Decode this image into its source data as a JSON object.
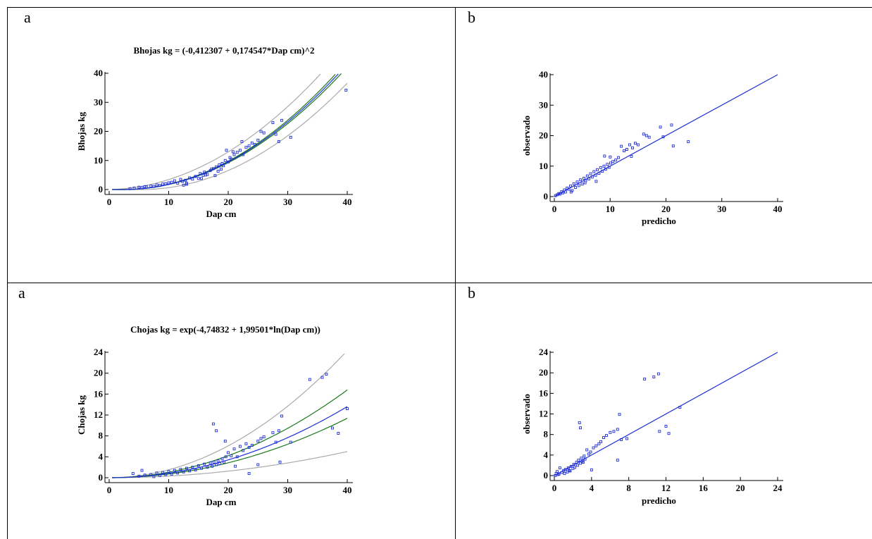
{
  "panel_labels": {
    "top_left": "a",
    "top_right": "b",
    "bottom_left": "a",
    "bottom_right": "b"
  },
  "colors": {
    "points": "#1f2fd6",
    "fit": "#1f2fd6",
    "conf": "#1a7a1a",
    "pred": "#aaaaaa",
    "axis": "#000000"
  },
  "chart_data": [
    {
      "id": "fit_top",
      "type": "scatter",
      "title": "Bhojas kg = (-0,412307 + 0,174547*Dap cm)^2",
      "xlabel": "Dap cm",
      "ylabel": "Bhojas kg",
      "xlim": [
        0,
        40
      ],
      "ylim": [
        0,
        40
      ],
      "xticks": [
        0,
        10,
        20,
        30,
        40
      ],
      "yticks": [
        0,
        10,
        20,
        30,
        40
      ],
      "x": [
        3.5,
        4.2,
        5.0,
        5.5,
        6.0,
        6.3,
        7.0,
        7.5,
        8.0,
        8.5,
        9.0,
        9.5,
        10.0,
        10.5,
        11.0,
        11.5,
        12.0,
        12.3,
        12.8,
        13.0,
        13.5,
        14.0,
        14.5,
        15.0,
        15.3,
        15.8,
        16.0,
        16.5,
        17.0,
        17.2,
        17.5,
        18.0,
        18.3,
        18.5,
        19.0,
        19.2,
        19.5,
        20.0,
        20.3,
        20.5,
        21.0,
        21.5,
        22.0,
        22.5,
        23.0,
        23.5,
        24.0,
        24.5,
        25.0,
        25.5,
        26.0,
        27.5,
        28.0,
        28.5,
        29.0,
        30.5,
        39.8,
        13.0,
        15.5,
        17.8,
        19.7,
        20.8,
        22.3,
        12.5,
        16.2,
        18.8
      ],
      "y": [
        0.3,
        0.5,
        0.8,
        0.6,
        1.0,
        0.9,
        1.2,
        1.1,
        1.6,
        1.4,
        1.9,
        2.0,
        2.3,
        2.5,
        3.0,
        2.2,
        3.5,
        2.8,
        3.2,
        1.8,
        4.0,
        3.6,
        4.5,
        3.8,
        5.5,
        4.9,
        6.0,
        5.2,
        6.5,
        7.0,
        7.2,
        7.8,
        6.3,
        8.5,
        9.0,
        8.2,
        10.0,
        9.5,
        11.0,
        10.5,
        12.0,
        12.8,
        13.5,
        12.0,
        14.5,
        15.0,
        16.0,
        15.5,
        17.0,
        20.0,
        19.5,
        23.0,
        19.0,
        16.5,
        23.8,
        18.0,
        34.2,
        2.2,
        3.8,
        4.8,
        13.5,
        13.0,
        16.5,
        1.5,
        5.0,
        7.0
      ],
      "fit": {
        "a": -0.412307,
        "b": 0.174547,
        "form": "(a + b*x)^2"
      }
    },
    {
      "id": "obs_top",
      "type": "scatter",
      "xlabel": "predicho",
      "ylabel": "observado",
      "xlim": [
        0,
        40
      ],
      "ylim": [
        0,
        40
      ],
      "xticks": [
        0,
        10,
        20,
        30,
        40
      ],
      "yticks": [
        0,
        10,
        20,
        30,
        40
      ],
      "x": [
        0.2,
        0.5,
        0.8,
        1.0,
        1.3,
        1.5,
        1.8,
        2.0,
        2.3,
        2.6,
        2.9,
        3.2,
        3.5,
        3.8,
        4.1,
        4.4,
        4.7,
        5.0,
        5.3,
        5.6,
        5.9,
        6.2,
        6.5,
        6.8,
        7.1,
        7.4,
        7.7,
        8.0,
        8.3,
        8.6,
        8.9,
        9.2,
        9.5,
        9.8,
        10.1,
        10.5,
        11.0,
        11.5,
        12.0,
        12.5,
        13.0,
        13.5,
        14.0,
        14.5,
        15.0,
        16.0,
        16.5,
        17.0,
        19.0,
        19.5,
        21.0,
        21.3,
        24.0,
        9.0,
        10.0,
        13.8,
        3.0,
        5.5,
        7.5
      ],
      "y": [
        0.3,
        0.6,
        1.0,
        0.8,
        1.6,
        1.2,
        2.2,
        1.5,
        2.8,
        2.4,
        3.5,
        2.0,
        4.2,
        3.0,
        4.8,
        3.6,
        5.5,
        4.1,
        6.0,
        5.2,
        6.8,
        5.8,
        7.5,
        6.4,
        8.2,
        7.0,
        8.8,
        7.6,
        9.5,
        8.3,
        10.0,
        9.0,
        10.6,
        9.6,
        11.0,
        11.5,
        12.0,
        12.8,
        16.5,
        15.0,
        15.5,
        17.0,
        16.0,
        17.5,
        17.0,
        20.5,
        20.0,
        19.5,
        22.8,
        19.6,
        23.5,
        16.6,
        18.0,
        13.3,
        13.0,
        13.2,
        1.5,
        4.5,
        5.0
      ]
    },
    {
      "id": "fit_bottom",
      "type": "scatter",
      "title": "Chojas kg = exp(-4,74832 + 1,99501*ln(Dap cm))",
      "xlabel": "Dap cm",
      "ylabel": "Chojas kg",
      "xlim": [
        0,
        40
      ],
      "ylim": [
        0,
        24
      ],
      "xticks": [
        0,
        10,
        20,
        30,
        40
      ],
      "yticks": [
        0,
        4,
        8,
        12,
        16,
        20,
        24
      ],
      "x": [
        4.0,
        5.0,
        5.5,
        6.0,
        7.0,
        7.5,
        8.0,
        8.5,
        9.0,
        9.5,
        10.0,
        10.5,
        11.0,
        11.5,
        12.0,
        12.5,
        13.0,
        13.5,
        14.0,
        14.5,
        15.0,
        15.5,
        16.0,
        16.5,
        17.0,
        17.3,
        17.6,
        18.0,
        18.3,
        18.6,
        19.0,
        19.3,
        19.6,
        20.0,
        20.5,
        21.0,
        21.5,
        22.0,
        22.5,
        23.0,
        23.5,
        24.0,
        25.0,
        25.5,
        26.0,
        27.5,
        28.0,
        28.5,
        29.0,
        30.5,
        33.7,
        35.8,
        36.5,
        37.5,
        38.5,
        40.0,
        17.5,
        18.0,
        19.5,
        21.2,
        23.5,
        25.0,
        28.7
      ],
      "y": [
        0.8,
        0.3,
        1.4,
        0.5,
        0.6,
        0.2,
        0.9,
        0.4,
        1.0,
        0.6,
        1.2,
        0.7,
        1.4,
        0.9,
        1.6,
        1.1,
        1.8,
        1.3,
        2.0,
        1.5,
        2.3,
        1.8,
        2.6,
        2.0,
        2.8,
        2.2,
        3.0,
        2.5,
        3.2,
        2.7,
        3.6,
        3.0,
        4.0,
        4.8,
        4.2,
        5.5,
        4.0,
        6.0,
        5.2,
        6.5,
        5.8,
        6.2,
        7.0,
        7.5,
        7.8,
        8.6,
        6.8,
        9.0,
        11.8,
        6.8,
        18.8,
        19.2,
        19.8,
        9.5,
        8.5,
        13.2,
        10.3,
        9.0,
        7.0,
        2.2,
        0.8,
        2.5,
        3.0
      ],
      "fit": {
        "a": -4.74832,
        "b": 1.99501,
        "form": "exp(a + b*ln(x))"
      }
    },
    {
      "id": "obs_bottom",
      "type": "scatter",
      "xlabel": "predicho",
      "ylabel": "observado",
      "xlim": [
        0,
        24
      ],
      "ylim": [
        0,
        24
      ],
      "xticks": [
        0,
        4,
        8,
        12,
        16,
        20,
        24
      ],
      "yticks": [
        0,
        4,
        8,
        12,
        16,
        20,
        24
      ],
      "x": [
        0.1,
        0.3,
        0.5,
        0.6,
        0.8,
        1.0,
        1.1,
        1.2,
        1.4,
        1.5,
        1.6,
        1.8,
        2.0,
        2.1,
        2.2,
        2.4,
        2.5,
        2.6,
        2.8,
        2.9,
        3.0,
        3.2,
        3.3,
        3.5,
        3.7,
        3.9,
        4.2,
        4.5,
        4.8,
        5.0,
        5.3,
        5.6,
        6.0,
        6.4,
        6.8,
        7.0,
        7.2,
        7.8,
        9.7,
        10.7,
        11.2,
        11.3,
        12.0,
        12.3,
        13.5,
        2.7,
        2.8,
        0.4,
        4.0,
        6.8,
        0.2,
        1.7,
        3.1
      ],
      "y": [
        0.0,
        0.8,
        0.3,
        1.5,
        0.6,
        1.0,
        0.4,
        1.2,
        0.7,
        1.5,
        1.0,
        1.8,
        1.4,
        2.2,
        1.6,
        2.6,
        2.0,
        3.0,
        2.4,
        3.4,
        2.8,
        3.8,
        3.2,
        5.0,
        4.2,
        4.6,
        5.4,
        5.8,
        6.2,
        6.6,
        7.4,
        7.8,
        8.4,
        8.6,
        9.0,
        11.9,
        7.0,
        7.2,
        18.8,
        19.2,
        19.8,
        8.6,
        9.6,
        8.2,
        13.3,
        10.3,
        9.3,
        0.2,
        1.1,
        3.0,
        0.4,
        0.9,
        2.6
      ]
    }
  ]
}
